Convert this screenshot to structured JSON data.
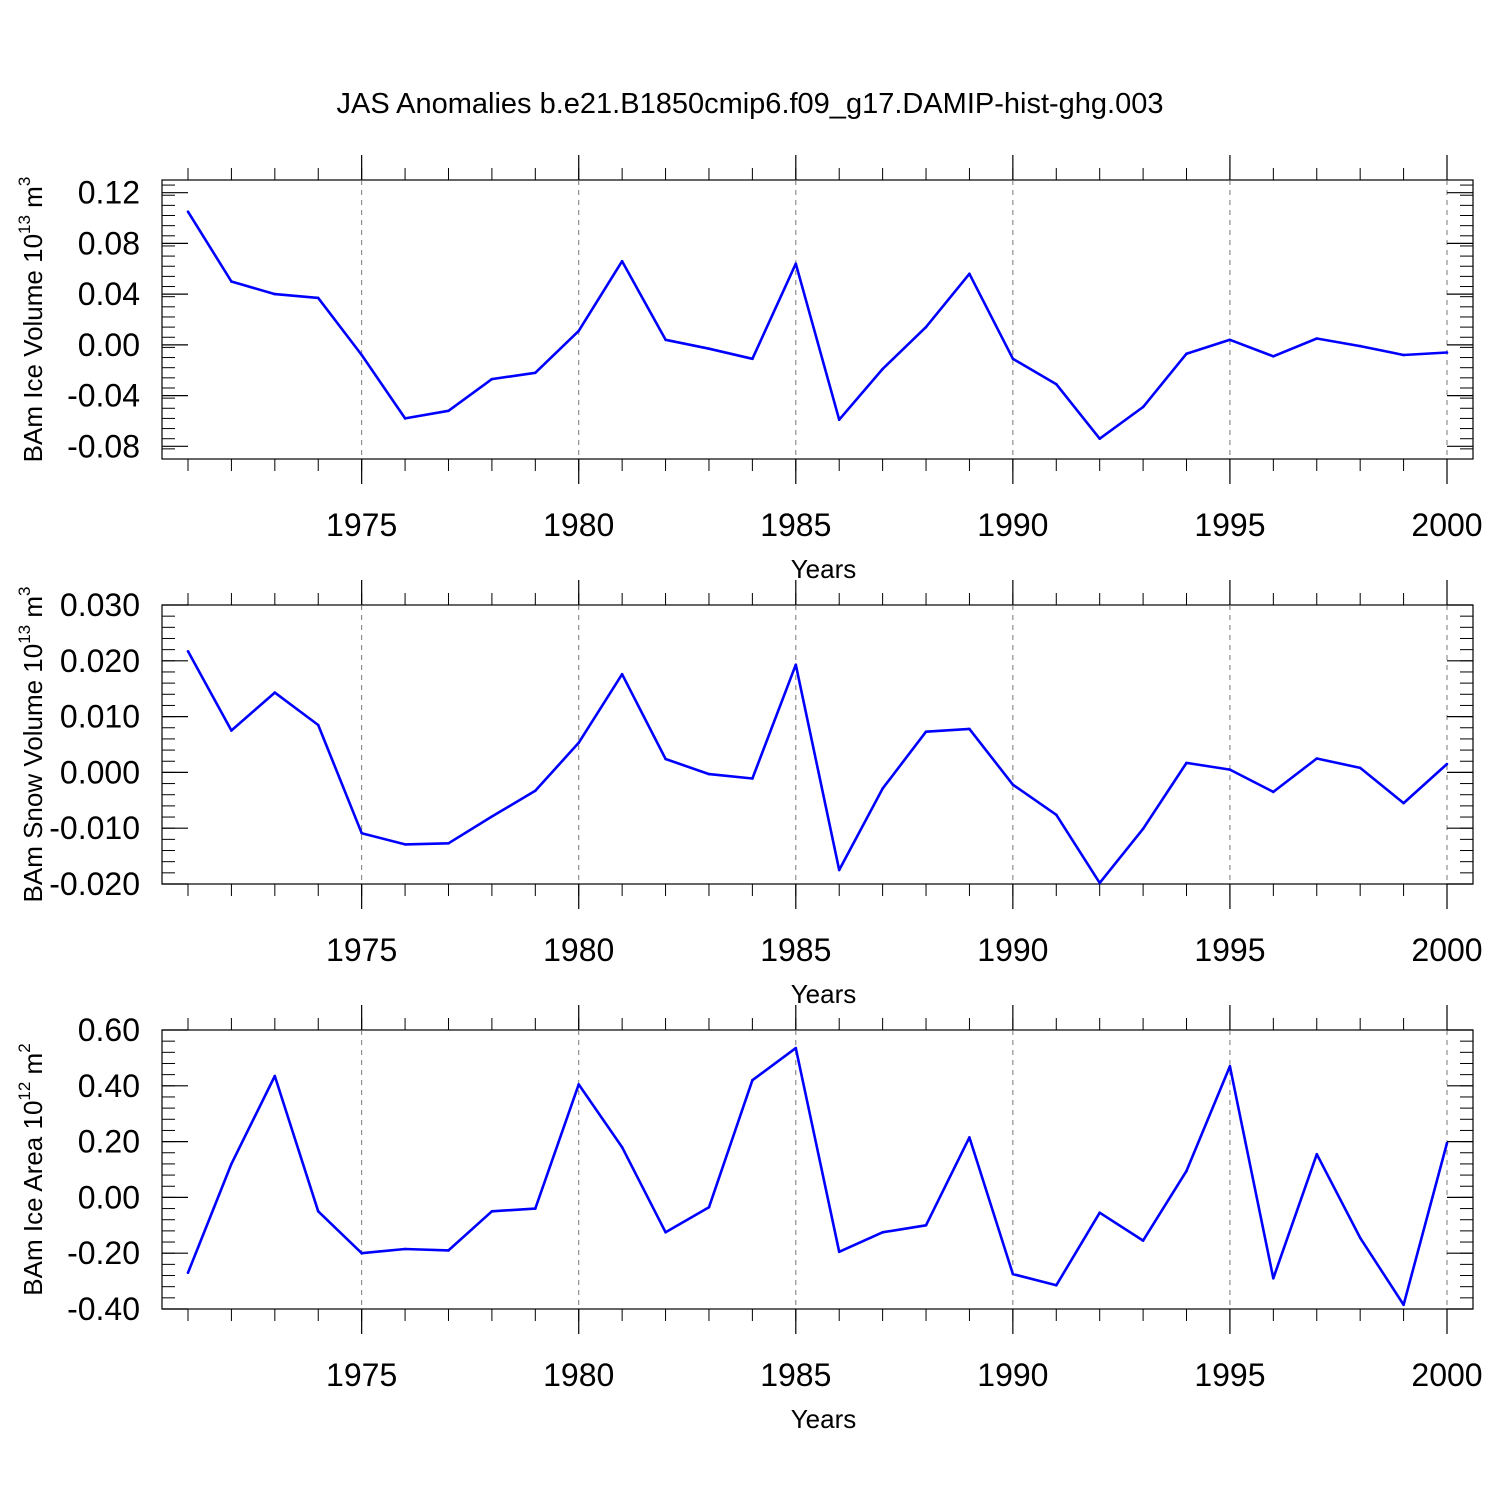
{
  "title": "JAS Anomalies b.e21.B1850cmip6.f09_g17.DAMIP-hist-ghg.003",
  "colors": {
    "series": "#0000ff",
    "axis": "#000000",
    "grid": "#777777"
  },
  "chart_data": [
    {
      "type": "line",
      "ylabel": {
        "base": "BAm Ice Volume 10",
        "exp": "13",
        "unit": " m",
        "unit_exp": "3"
      },
      "xlabel": "Years",
      "xlim": [
        1971,
        2000
      ],
      "ylim": [
        -0.09,
        0.13
      ],
      "x_ticks": [
        "1975",
        "1980",
        "1985",
        "1990",
        "1995",
        "2000"
      ],
      "y_ticks": [
        "-0.08",
        "-0.04",
        "0.00",
        "0.04",
        "0.08",
        "0.12"
      ],
      "grid": "dashed vertical at major x ticks",
      "x": [
        1971,
        1972,
        1973,
        1974,
        1975,
        1976,
        1977,
        1978,
        1979,
        1980,
        1981,
        1982,
        1983,
        1984,
        1985,
        1986,
        1987,
        1988,
        1989,
        1990,
        1991,
        1992,
        1993,
        1994,
        1995,
        1996,
        1997,
        1998,
        1999,
        2000
      ],
      "values": [
        0.105,
        0.05,
        0.04,
        0.037,
        -0.008,
        -0.058,
        -0.052,
        -0.027,
        -0.022,
        0.011,
        0.066,
        0.004,
        -0.003,
        -0.011,
        0.064,
        -0.059,
        -0.019,
        0.014,
        0.056,
        -0.011,
        -0.031,
        -0.074,
        -0.049,
        -0.007,
        0.004,
        -0.009,
        0.005,
        -0.001,
        -0.008,
        -0.006
      ]
    },
    {
      "type": "line",
      "ylabel": {
        "base": "BAm Snow Volume 10",
        "exp": "13",
        "unit": " m",
        "unit_exp": "3"
      },
      "xlabel": "Years",
      "xlim": [
        1971,
        2000
      ],
      "ylim": [
        -0.02,
        0.03
      ],
      "x_ticks": [
        "1975",
        "1980",
        "1985",
        "1990",
        "1995",
        "2000"
      ],
      "y_ticks": [
        "-0.020",
        "-0.010",
        "0.000",
        "0.010",
        "0.020",
        "0.030"
      ],
      "grid": "dashed vertical at major x ticks",
      "x": [
        1971,
        1972,
        1973,
        1974,
        1975,
        1976,
        1977,
        1978,
        1979,
        1980,
        1981,
        1982,
        1983,
        1984,
        1985,
        1986,
        1987,
        1988,
        1989,
        1990,
        1991,
        1992,
        1993,
        1994,
        1995,
        1996,
        1997,
        1998,
        1999,
        2000
      ],
      "values": [
        0.0217,
        0.0075,
        0.0143,
        0.0085,
        -0.0109,
        -0.0129,
        -0.0127,
        -0.0079,
        -0.0033,
        0.0053,
        0.0176,
        0.0024,
        -0.0003,
        -0.0011,
        0.0193,
        -0.0175,
        -0.0029,
        0.0073,
        0.0078,
        -0.0022,
        -0.0076,
        -0.0198,
        -0.0101,
        0.0017,
        0.0005,
        -0.0035,
        0.0025,
        0.0008,
        -0.0055,
        0.0015
      ]
    },
    {
      "type": "line",
      "ylabel": {
        "base": "BAm Ice Area 10",
        "exp": "12",
        "unit": " m",
        "unit_exp": "2"
      },
      "xlabel": "Years",
      "xlim": [
        1971,
        2000
      ],
      "ylim": [
        -0.4,
        0.6
      ],
      "x_ticks": [
        "1975",
        "1980",
        "1985",
        "1990",
        "1995",
        "2000"
      ],
      "y_ticks": [
        "-0.40",
        "-0.20",
        "0.00",
        "0.20",
        "0.40",
        "0.60"
      ],
      "grid": "dashed vertical at major x ticks",
      "x": [
        1971,
        1972,
        1973,
        1974,
        1975,
        1976,
        1977,
        1978,
        1979,
        1980,
        1981,
        1982,
        1983,
        1984,
        1985,
        1986,
        1987,
        1988,
        1989,
        1990,
        1991,
        1992,
        1993,
        1994,
        1995,
        1996,
        1997,
        1998,
        1999,
        2000
      ],
      "values": [
        -0.27,
        0.12,
        0.435,
        -0.05,
        -0.2,
        -0.185,
        -0.19,
        -0.05,
        -0.04,
        0.405,
        0.18,
        -0.125,
        -0.035,
        0.42,
        0.535,
        -0.195,
        -0.125,
        -0.1,
        0.215,
        -0.275,
        -0.315,
        -0.055,
        -0.155,
        0.095,
        0.47,
        -0.29,
        0.155,
        -0.145,
        -0.385,
        0.195
      ]
    }
  ]
}
